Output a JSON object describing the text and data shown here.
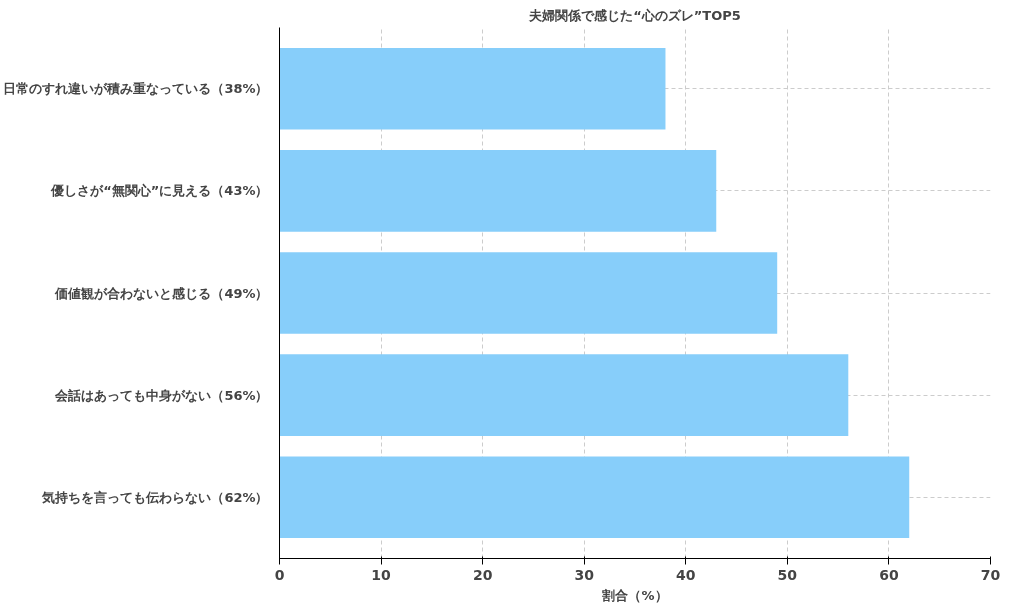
{
  "chart_data": {
    "type": "bar",
    "orientation": "horizontal",
    "title": "夫婦関係で感じた“心のズレ”TOP5",
    "xlabel": "割合（%）",
    "categories": [
      "日常のすれ違いが積み重なっている（38%）",
      "優しさが“無関心”に見える（43%）",
      "価値観が合わないと感じる（49%）",
      "会話はあっても中身がない（56%）",
      "気持ちを言っても伝わらない（62%）"
    ],
    "values": [
      38,
      43,
      49,
      56,
      62
    ],
    "color": "#87cefa",
    "xlim": [
      0,
      70
    ],
    "xticks": [
      0,
      10,
      20,
      30,
      40,
      50,
      60,
      70
    ],
    "grid": true
  }
}
